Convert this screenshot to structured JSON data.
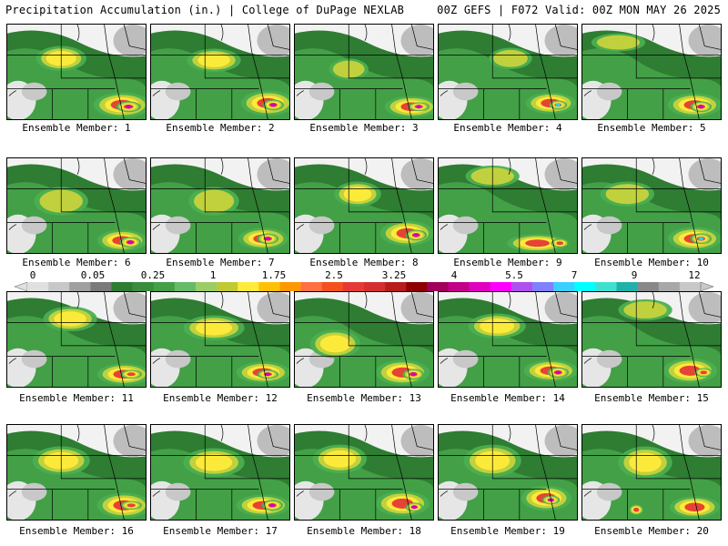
{
  "header": {
    "left": "Precipitation Accumulation (in.) | College of DuPage NEXLAB",
    "right": "00Z GEFS | F072 Valid: 00Z MON MAY 26 2025"
  },
  "panels": [
    {
      "caption": "Ensemble Member: 1"
    },
    {
      "caption": "Ensemble Member: 2"
    },
    {
      "caption": "Ensemble Member: 3"
    },
    {
      "caption": "Ensemble Member: 4"
    },
    {
      "caption": "Ensemble Member: 5"
    },
    {
      "caption": "Ensemble Member: 6"
    },
    {
      "caption": "Ensemble Member: 7"
    },
    {
      "caption": "Ensemble Member: 8"
    },
    {
      "caption": "Ensemble Member: 9"
    },
    {
      "caption": "Ensemble Member: 10"
    },
    {
      "caption": "Ensemble Member: 11"
    },
    {
      "caption": "Ensemble Member: 12"
    },
    {
      "caption": "Ensemble Member: 13"
    },
    {
      "caption": "Ensemble Member: 14"
    },
    {
      "caption": "Ensemble Member: 15"
    },
    {
      "caption": "Ensemble Member: 16"
    },
    {
      "caption": "Ensemble Member: 17"
    },
    {
      "caption": "Ensemble Member: 18"
    },
    {
      "caption": "Ensemble Member: 19"
    },
    {
      "caption": "Ensemble Member: 20"
    }
  ],
  "colorbar": {
    "labels": [
      "0",
      "0.05",
      "0.25",
      "1",
      "1.75",
      "2.5",
      "3.25",
      "4",
      "5.5",
      "7",
      "9",
      "12"
    ],
    "colors": [
      "#e0e0e0",
      "#c8c8c8",
      "#a0a0a0",
      "#7a7a7a",
      "#2e7d32",
      "#388e3c",
      "#43a047",
      "#66bb6a",
      "#9ccc65",
      "#c0ca33",
      "#ffeb3b",
      "#ffc107",
      "#ff9800",
      "#ff7043",
      "#f4511e",
      "#e53935",
      "#d32f2f",
      "#b71c1c",
      "#8e0000",
      "#a0005a",
      "#c2008a",
      "#e000c0",
      "#ff00ff",
      "#b04ff0",
      "#8080ff",
      "#3ad0ff",
      "#00ffff",
      "#40e0d0",
      "#20b2aa",
      "#888888",
      "#a8a8a8",
      "#c8c8c8"
    ]
  }
}
